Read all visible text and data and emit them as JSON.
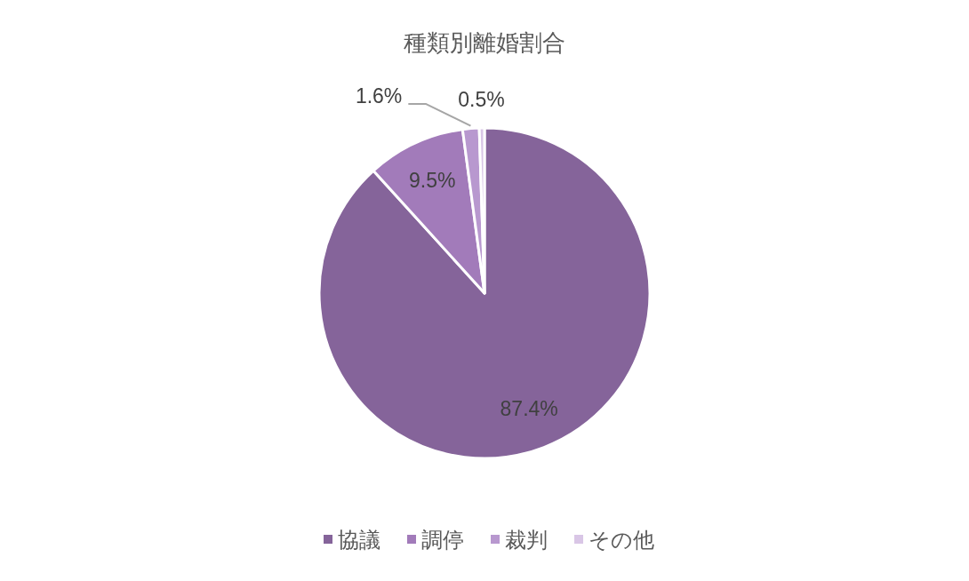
{
  "chart_data": {
    "type": "pie",
    "title": "種類別離婚割合",
    "categories": [
      "協議",
      "調停",
      "裁判",
      "その他"
    ],
    "values": [
      87.4,
      9.5,
      1.6,
      0.5
    ],
    "colors": [
      "#85649a",
      "#a27bba",
      "#b898cf",
      "#d9c6e6"
    ],
    "value_labels": [
      "87.4%",
      "9.5%",
      "1.6%",
      "0.5%"
    ],
    "legend": "bottom"
  }
}
